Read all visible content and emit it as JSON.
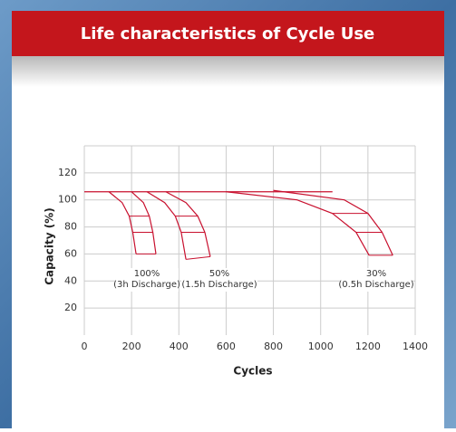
{
  "chart_data": {
    "type": "line",
    "title": "Life characteristics of Cycle Use",
    "xlabel": "Cycles",
    "ylabel": "Capacity (%)",
    "xlim": [
      0,
      1400
    ],
    "xticks": [
      0,
      200,
      400,
      600,
      800,
      1000,
      1200,
      1400
    ],
    "ylim": [
      0,
      140
    ],
    "yticks": [
      20,
      40,
      60,
      80,
      100,
      120
    ],
    "grid": true,
    "color": "#c8102e",
    "series": [
      {
        "x": [
          0,
          1050
        ],
        "values": [
          106,
          106
        ]
      },
      {
        "x": [
          104,
          160,
          190,
          205,
          219
        ],
        "values": [
          106,
          98,
          88,
          76,
          60
        ]
      },
      {
        "x": [
          200,
          250,
          275,
          290,
          303
        ],
        "values": [
          106,
          98,
          88,
          76,
          60
        ]
      },
      {
        "x": [
          265,
          340,
          385,
          410,
          430
        ],
        "values": [
          106,
          98,
          88,
          76,
          56
        ]
      },
      {
        "x": [
          345,
          430,
          480,
          510,
          533
        ],
        "values": [
          106,
          98,
          88,
          76,
          58
        ]
      },
      {
        "x": [
          600,
          900,
          1050,
          1150,
          1205
        ],
        "values": [
          106,
          100,
          90,
          76,
          59
        ]
      },
      {
        "x": [
          800,
          1100,
          1200,
          1260,
          1305
        ],
        "values": [
          107,
          100,
          90,
          76,
          59
        ]
      }
    ],
    "annotations": [
      [
        "100%",
        "(3h Discharge)"
      ],
      [
        "50%",
        "(1.5h Discharge)"
      ],
      [
        "30%",
        "(0.5h Discharge)"
      ]
    ]
  }
}
